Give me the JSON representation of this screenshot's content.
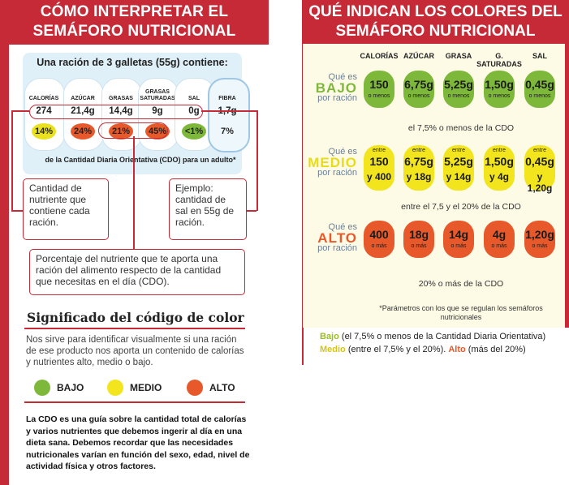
{
  "left": {
    "title_line1": "CÓMO INTERPRETAR EL",
    "title_line2": "SEMÁFORO NUTRICIONAL",
    "serving": "Una ración de 3 galletas (55g) contiene:",
    "nutrients": [
      {
        "name": "CALORÍAS",
        "value": "274",
        "pct": "14%",
        "color": "#e9e01e"
      },
      {
        "name": "AZÚCAR",
        "value": "21,4g",
        "pct": "24%",
        "color": "#e7582b"
      },
      {
        "name": "GRASAS",
        "value": "14,4g",
        "pct": "21%",
        "color": "#e7582b"
      },
      {
        "name": "GRASAS SATURADAS",
        "value": "9g",
        "pct": "45%",
        "color": "#e7582b"
      },
      {
        "name": "SAL",
        "value": "0g",
        "pct": "<1%",
        "color": "#7db83a"
      },
      {
        "name": "FIBRA",
        "value": "1,7g",
        "pct": "7%",
        "color": ""
      }
    ],
    "cdo_line": "de la Cantidad Diaria Orientativa (CDO) para un adulto*",
    "callout_value": "Cantidad de nutriente que contiene cada ración.",
    "callout_example": "Ejemplo: cantidad de sal en 55g de ración.",
    "callout_pct": "Porcentaje del nutriente que te aporta una ración del alimento respecto de la cantidad que necesitas en el día (CDO).",
    "sig_title": "Significado del código de color",
    "sig_text": "Nos sirve para identificar visualmente si una ración de ese producto nos aporta un contenido de calorías y nutrientes alto, medio o bajo.",
    "legend": [
      {
        "label": "BAJO",
        "color": "#7db83a"
      },
      {
        "label": "MEDIO",
        "color": "#f2e51d"
      },
      {
        "label": "ALTO",
        "color": "#e7582b"
      }
    ],
    "cdo_text": "La CDO es una guía sobre la cantidad total de calorías y varios nutrientes que debemos ingerir al día en una dieta sana. Debemos recordar que las necesidades nutricionales varían en función del sexo, edad, nivel de actividad física y otros factores."
  },
  "right": {
    "title_line1": "QUÉ INDICAN LOS COLORES DEL",
    "title_line2": "SEMÁFORO NUTRICIONAL",
    "columns": [
      "CALORÍAS",
      "AZÚCAR",
      "GRASA",
      "G. SATURADAS",
      "SAL"
    ],
    "levels": [
      {
        "q": "Qué es",
        "word": "BAJO",
        "por": "por ración",
        "word_color": "#7db83a",
        "fill": "#7db83a",
        "cells": [
          {
            "top": "",
            "val": "150",
            "sub": "o menos"
          },
          {
            "top": "",
            "val": "6,75g",
            "sub": "o menos"
          },
          {
            "top": "",
            "val": "5,25g",
            "sub": "o menos"
          },
          {
            "top": "",
            "val": "1,50g",
            "sub": "o menos"
          },
          {
            "top": "",
            "val": "0,45g",
            "sub": "o menos"
          }
        ],
        "note": "el 7,5% o menos de la CDO"
      },
      {
        "q": "Qué es",
        "word": "MEDIO",
        "por": "por ración",
        "word_color": "#e8dc17",
        "fill": "#f2e51d",
        "cells": [
          {
            "top": "entre",
            "val": "150",
            "sub": "y 400"
          },
          {
            "top": "entre",
            "val": "6,75g",
            "sub": "y 18g"
          },
          {
            "top": "entre",
            "val": "5,25g",
            "sub": "y 14g"
          },
          {
            "top": "entre",
            "val": "1,50g",
            "sub": "y 4g"
          },
          {
            "top": "entre",
            "val": "0,45g",
            "sub": "y 1,20g"
          }
        ],
        "note": "entre el 7,5 y el 20% de la CDO"
      },
      {
        "q": "Qué es",
        "word": "ALTO",
        "por": "por ración",
        "word_color": "#e7582b",
        "fill": "#e7582b",
        "cells": [
          {
            "top": "",
            "val": "400",
            "sub": "o más"
          },
          {
            "top": "",
            "val": "18g",
            "sub": "o más"
          },
          {
            "top": "",
            "val": "14g",
            "sub": "o más"
          },
          {
            "top": "",
            "val": "4g",
            "sub": "o más"
          },
          {
            "top": "",
            "val": "1,20g",
            "sub": "o más"
          }
        ],
        "note": "20% o más de la CDO"
      }
    ],
    "footnote": "*Parámetros con los que se regulan los semáforos nutricionales",
    "legend_bajo": "Bajo",
    "legend_bajo_text": " (el 7,5% o menos de la Cantidad Diaria Orientativa)",
    "legend_medio": "Medio",
    "legend_medio_text": " (entre el 7,5% y el 20%). ",
    "legend_alto": "Alto",
    "legend_alto_text": " (más del 20%)",
    "col_bajo": "#9bbd2b",
    "col_medio": "#d4c41a",
    "col_alto": "#e7582b"
  }
}
